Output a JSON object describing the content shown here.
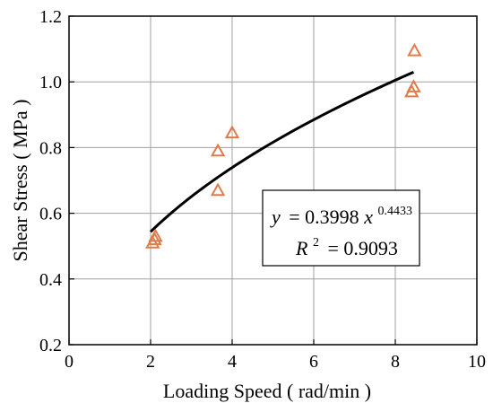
{
  "chart_data": {
    "type": "scatter",
    "xlabel": "Loading Speed ( rad/min )",
    "ylabel": "Shear Stress ( MPa )",
    "xlim": [
      0,
      10
    ],
    "ylim": [
      0.2,
      1.2
    ],
    "xticks": [
      0,
      2,
      4,
      6,
      8,
      10
    ],
    "yticks": [
      0.2,
      0.4,
      0.6,
      0.8,
      1.0,
      1.2
    ],
    "x_tick_labels": [
      "0",
      "2",
      "4",
      "6",
      "8",
      "10"
    ],
    "y_tick_labels": [
      "0.2",
      "0.4",
      "0.6",
      "0.8",
      "1.0",
      "1.2"
    ],
    "grid": true,
    "series": [
      {
        "marker": "triangle-open",
        "color": "#E07B4A",
        "points": [
          {
            "x": 2.05,
            "y": 0.51
          },
          {
            "x": 2.1,
            "y": 0.52
          },
          {
            "x": 2.12,
            "y": 0.53
          },
          {
            "x": 3.65,
            "y": 0.67
          },
          {
            "x": 3.65,
            "y": 0.79
          },
          {
            "x": 4.0,
            "y": 0.845
          },
          {
            "x": 8.4,
            "y": 0.97
          },
          {
            "x": 8.45,
            "y": 0.985
          },
          {
            "x": 8.47,
            "y": 1.095
          }
        ]
      }
    ],
    "fit": {
      "coefficient": 0.3998,
      "exponent": 0.4433,
      "x_range": [
        2.0,
        8.45
      ],
      "color": "#000000",
      "equation_lhs": "y",
      "equation_rhs": "= 0.3998",
      "equation_var": "x",
      "equation_exp": "0.4433",
      "r2_lhs": "R",
      "r2_exp": "2",
      "r2_rhs": "= 0.9093"
    }
  }
}
